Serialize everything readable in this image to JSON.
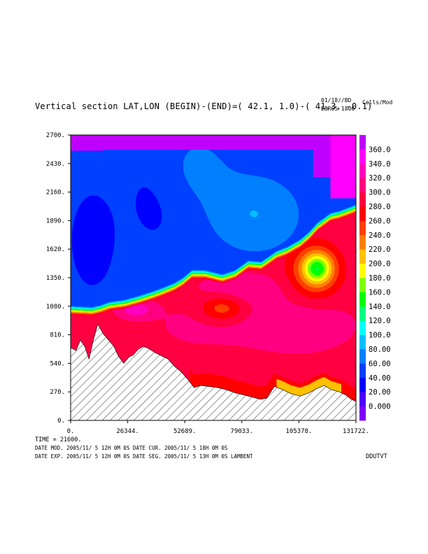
{
  "header": {
    "title": "Vertical section LAT,LON (BEGIN)-(END)=( 42.1,  1.0)-( 41.3, -0.1)",
    "date_tag": "01/18//BD",
    "run_tag": "EBR05 1800",
    "units": "Cells/Mod"
  },
  "footer": {
    "time_line": "TIME =    21600.",
    "line1": "DATE MOD. 2005/11/ 5  12H 0M 0S   DATE CUR. 2005/11/ 5  18H 0M 0S",
    "line2": "DATE EXP.  2005/11/ 5  12H 0M 0S   DATE SEG. 2005/11/ 5  13H 0M 0S   LAMBENT",
    "field": "DDUTVT"
  },
  "chart_data": {
    "type": "heatmap",
    "title": "Vertical section LAT,LON (BEGIN)-(END)=( 42.1,  1.0)-( 41.3, -0.1)",
    "xlabel": "",
    "ylabel": "",
    "xlim": [
      0,
      131722
    ],
    "ylim": [
      0,
      2700
    ],
    "x_ticks": [
      "0.",
      "26344.",
      "52689.",
      "79033.",
      "105378.",
      "131722."
    ],
    "y_ticks": [
      "0.",
      "270.",
      "540.",
      "810.",
      "1080.",
      "1350.",
      "1620.",
      "1890.",
      "2160.",
      "2430.",
      "2700."
    ],
    "colorbar": {
      "levels": [
        "0.000",
        "20.00",
        "40.00",
        "60.00",
        "80.00",
        "100.0",
        "120.0",
        "140.0",
        "160.0",
        "180.0",
        "200.0",
        "220.0",
        "240.0",
        "260.0",
        "280.0",
        "300.0",
        "320.0",
        "340.0",
        "360.0"
      ],
      "colors": [
        "#7f00ff",
        "#5000ff",
        "#0000ff",
        "#0040ff",
        "#0080ff",
        "#00c0ff",
        "#00ffff",
        "#00ff80",
        "#00ff00",
        "#80ff00",
        "#ffff00",
        "#ffc000",
        "#ff8000",
        "#ff4000",
        "#ff0000",
        "#ff0040",
        "#ff0080",
        "#ff00c0",
        "#ff00ff",
        "#c000ff"
      ]
    },
    "terrain": {
      "x": [
        0,
        2500,
        4500,
        6500,
        8500,
        10500,
        12500,
        15000,
        17500,
        20000,
        22000,
        24500,
        27000,
        29000,
        31000,
        33500,
        36000,
        39000,
        42000,
        45000,
        48000,
        51000,
        54000,
        57000,
        60000,
        64000,
        68000,
        72000,
        76000,
        80000,
        84000,
        87500,
        90500,
        94000,
        98000,
        102000,
        106000,
        110000,
        113500,
        117000,
        120500,
        124000,
        127000,
        129500,
        131722
      ],
      "y": [
        690,
        660,
        760,
        700,
        580,
        760,
        910,
        820,
        760,
        700,
        610,
        540,
        600,
        620,
        670,
        700,
        680,
        640,
        610,
        580,
        510,
        460,
        390,
        310,
        330,
        320,
        310,
        290,
        260,
        240,
        220,
        200,
        210,
        320,
        290,
        250,
        230,
        260,
        300,
        330,
        290,
        270,
        240,
        200,
        180
      ]
    },
    "data_max": 360
  }
}
